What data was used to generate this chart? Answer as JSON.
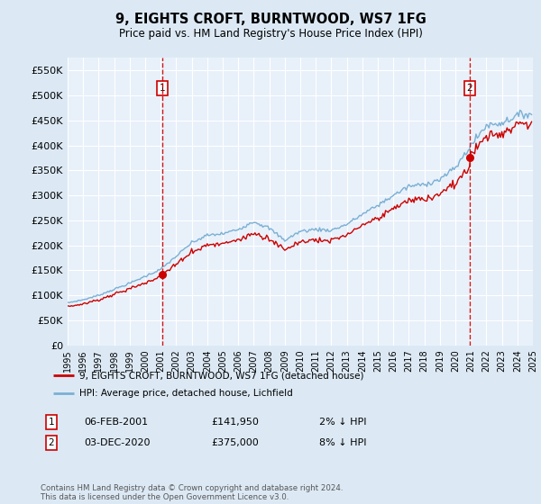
{
  "title": "9, EIGHTS CROFT, BURNTWOOD, WS7 1FG",
  "subtitle": "Price paid vs. HM Land Registry's House Price Index (HPI)",
  "legend_label_red": "9, EIGHTS CROFT, BURNTWOOD, WS7 1FG (detached house)",
  "legend_label_blue": "HPI: Average price, detached house, Lichfield",
  "footnote": "Contains HM Land Registry data © Crown copyright and database right 2024.\nThis data is licensed under the Open Government Licence v3.0.",
  "transactions": [
    {
      "num": 1,
      "date": "06-FEB-2001",
      "price": "£141,950",
      "hpi_note": "2% ↓ HPI",
      "year": 2001.09
    },
    {
      "num": 2,
      "date": "03-DEC-2020",
      "price": "£375,000",
      "hpi_note": "8% ↓ HPI",
      "year": 2020.92
    }
  ],
  "transaction_prices": [
    141950,
    375000
  ],
  "ylim": [
    0,
    575000
  ],
  "yticks": [
    0,
    50000,
    100000,
    150000,
    200000,
    250000,
    300000,
    350000,
    400000,
    450000,
    500000,
    550000
  ],
  "ytick_labels": [
    "£0",
    "£50K",
    "£100K",
    "£150K",
    "£200K",
    "£250K",
    "£300K",
    "£350K",
    "£400K",
    "£450K",
    "£500K",
    "£550K"
  ],
  "bg_color": "#dce9f5",
  "plot_bg_color": "#e8f1fa",
  "grid_color": "#ffffff",
  "red_color": "#cc0000",
  "blue_color": "#7bafd4",
  "annual_hpi": {
    "1995": 85000,
    "1996": 91000,
    "1997": 100000,
    "1998": 112000,
    "1999": 124000,
    "2000": 138000,
    "2001": 152000,
    "2002": 178000,
    "2003": 205000,
    "2004": 220000,
    "2005": 223000,
    "2006": 232000,
    "2007": 248000,
    "2008": 234000,
    "2009": 210000,
    "2010": 228000,
    "2011": 232000,
    "2012": 230000,
    "2013": 242000,
    "2014": 262000,
    "2015": 280000,
    "2016": 300000,
    "2017": 318000,
    "2018": 322000,
    "2019": 332000,
    "2020": 355000,
    "2021": 400000,
    "2022": 440000,
    "2023": 445000,
    "2024": 460000,
    "2025": 465000
  }
}
